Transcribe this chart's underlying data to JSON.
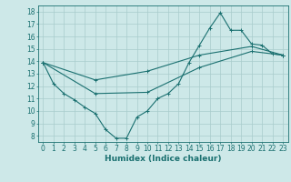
{
  "title": "",
  "xlabel": "Humidex (Indice chaleur)",
  "xlim": [
    -0.5,
    23.5
  ],
  "ylim": [
    7.5,
    18.5
  ],
  "xticks": [
    0,
    1,
    2,
    3,
    4,
    5,
    6,
    7,
    8,
    9,
    10,
    11,
    12,
    13,
    14,
    15,
    16,
    17,
    18,
    19,
    20,
    21,
    22,
    23
  ],
  "yticks": [
    8,
    9,
    10,
    11,
    12,
    13,
    14,
    15,
    16,
    17,
    18
  ],
  "background_color": "#cde8e8",
  "grid_color": "#a8cccc",
  "line_color": "#1a7070",
  "lines": [
    {
      "x": [
        0,
        1,
        2,
        3,
        4,
        5,
        6,
        7,
        8,
        9,
        10,
        11,
        12,
        13,
        14,
        15,
        16,
        17,
        18,
        19,
        20,
        21,
        22,
        23
      ],
      "y": [
        13.9,
        12.2,
        11.4,
        10.9,
        10.3,
        9.8,
        8.5,
        7.8,
        7.8,
        9.5,
        10.0,
        11.0,
        11.4,
        12.2,
        13.9,
        15.3,
        16.7,
        17.9,
        16.5,
        16.5,
        15.4,
        15.3,
        14.6,
        14.5
      ]
    },
    {
      "x": [
        0,
        23
      ],
      "y": [
        13.9,
        14.5
      ]
    },
    {
      "x": [
        0,
        23
      ],
      "y": [
        13.9,
        14.5
      ]
    }
  ],
  "line1_x": [
    0,
    1,
    2,
    3,
    4,
    5,
    6,
    7,
    8,
    9,
    10,
    11,
    12,
    13,
    14,
    15,
    16,
    17,
    18,
    19,
    20,
    21,
    22,
    23
  ],
  "line1_y": [
    13.9,
    12.2,
    11.4,
    10.9,
    10.3,
    9.8,
    8.5,
    7.8,
    7.8,
    9.5,
    10.0,
    11.0,
    11.4,
    12.2,
    13.9,
    15.3,
    16.7,
    17.9,
    16.5,
    16.5,
    15.4,
    15.3,
    14.6,
    14.5
  ],
  "line2_x": [
    0,
    5,
    10,
    15,
    20,
    23
  ],
  "line2_y": [
    13.9,
    12.5,
    13.2,
    14.5,
    15.2,
    14.5
  ],
  "line3_x": [
    0,
    5,
    10,
    15,
    20,
    23
  ],
  "line3_y": [
    13.9,
    11.4,
    11.5,
    13.5,
    14.8,
    14.5
  ],
  "figsize": [
    3.2,
    2.0
  ],
  "dpi": 100,
  "tick_fontsize": 5.5,
  "label_fontsize": 6.5
}
